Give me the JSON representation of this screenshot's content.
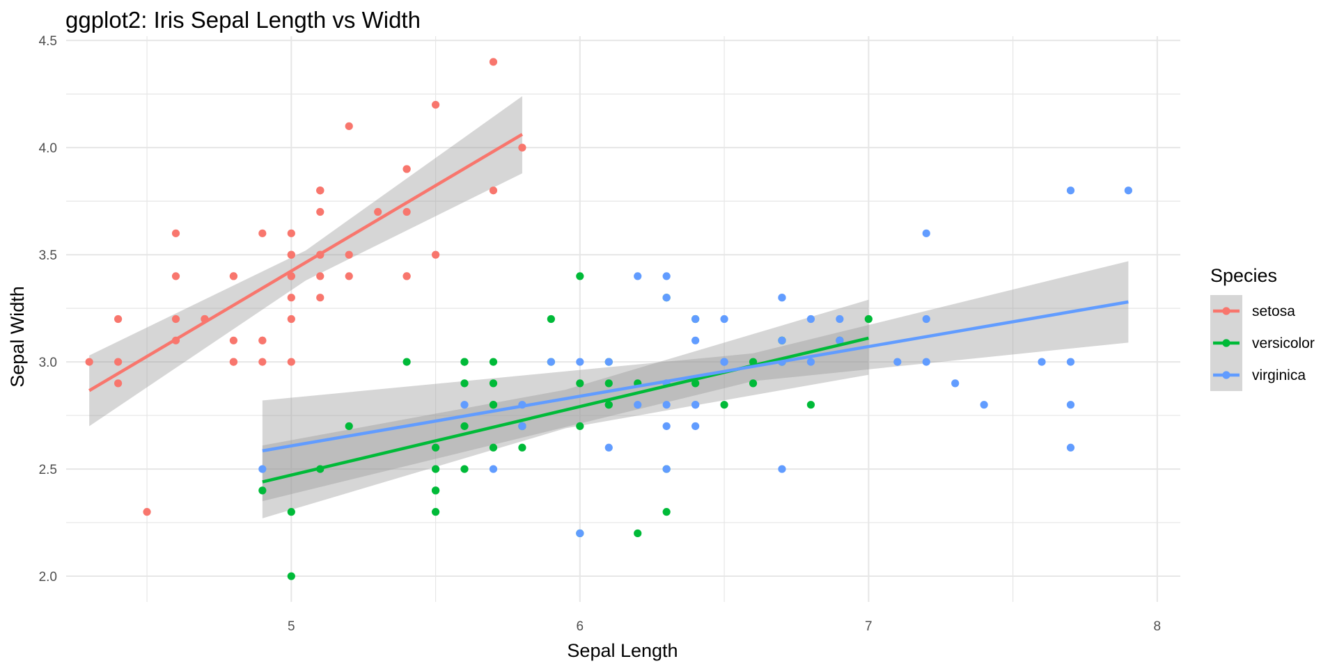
{
  "chart_data": {
    "type": "scatter",
    "title": "ggplot2: Iris Sepal Length vs Width",
    "xlabel": "Sepal Length",
    "ylabel": "Sepal Width",
    "xlim": [
      4.22,
      8.08
    ],
    "ylim": [
      1.88,
      4.52
    ],
    "x_ticks": [
      5,
      6,
      7,
      8
    ],
    "x_tick_labels": [
      "5",
      "6",
      "7",
      "8"
    ],
    "x_minor_ticks": [
      4.5,
      5.5,
      6.5,
      7.5
    ],
    "y_ticks": [
      2.0,
      2.5,
      3.0,
      3.5,
      4.0,
      4.5
    ],
    "y_tick_labels": [
      "2.0",
      "2.5",
      "3.0",
      "3.5",
      "4.0",
      "4.5"
    ],
    "y_minor_ticks": [
      2.25,
      2.75,
      3.25,
      3.75,
      4.25
    ],
    "grid": true,
    "legend": {
      "title": "Species",
      "position": "right"
    },
    "series": [
      {
        "name": "setosa",
        "color": "#F8766D",
        "points": [
          [
            5.1,
            3.5
          ],
          [
            4.9,
            3.0
          ],
          [
            4.7,
            3.2
          ],
          [
            4.6,
            3.1
          ],
          [
            5.0,
            3.6
          ],
          [
            5.4,
            3.9
          ],
          [
            4.6,
            3.4
          ],
          [
            5.0,
            3.4
          ],
          [
            4.4,
            2.9
          ],
          [
            4.9,
            3.1
          ],
          [
            5.4,
            3.7
          ],
          [
            4.8,
            3.4
          ],
          [
            4.8,
            3.0
          ],
          [
            4.3,
            3.0
          ],
          [
            5.8,
            4.0
          ],
          [
            5.7,
            4.4
          ],
          [
            5.4,
            3.9
          ],
          [
            5.1,
            3.5
          ],
          [
            5.7,
            3.8
          ],
          [
            5.1,
            3.8
          ],
          [
            5.4,
            3.4
          ],
          [
            5.1,
            3.7
          ],
          [
            4.6,
            3.6
          ],
          [
            5.1,
            3.3
          ],
          [
            4.8,
            3.4
          ],
          [
            5.0,
            3.0
          ],
          [
            5.0,
            3.4
          ],
          [
            5.2,
            3.5
          ],
          [
            5.2,
            3.4
          ],
          [
            4.7,
            3.2
          ],
          [
            4.8,
            3.1
          ],
          [
            5.4,
            3.4
          ],
          [
            5.2,
            4.1
          ],
          [
            5.5,
            4.2
          ],
          [
            4.9,
            3.1
          ],
          [
            5.0,
            3.2
          ],
          [
            5.5,
            3.5
          ],
          [
            4.9,
            3.6
          ],
          [
            4.4,
            3.0
          ],
          [
            5.1,
            3.4
          ],
          [
            5.0,
            3.5
          ],
          [
            4.5,
            2.3
          ],
          [
            4.4,
            3.2
          ],
          [
            5.0,
            3.5
          ],
          [
            5.1,
            3.8
          ],
          [
            4.8,
            3.0
          ],
          [
            5.1,
            3.8
          ],
          [
            4.6,
            3.2
          ],
          [
            5.3,
            3.7
          ],
          [
            5.0,
            3.3
          ]
        ],
        "fit": {
          "x": [
            4.3,
            5.8
          ],
          "y": [
            2.866,
            4.062
          ]
        },
        "ribbon": {
          "x": [
            4.3,
            5.05,
            5.8
          ],
          "lower": [
            2.7,
            3.38,
            3.88
          ],
          "upper": [
            3.03,
            3.52,
            4.24
          ]
        }
      },
      {
        "name": "versicolor",
        "color": "#00BA38",
        "points": [
          [
            7.0,
            3.2
          ],
          [
            6.4,
            3.2
          ],
          [
            6.9,
            3.1
          ],
          [
            5.5,
            2.3
          ],
          [
            6.5,
            2.8
          ],
          [
            5.7,
            2.8
          ],
          [
            6.3,
            3.3
          ],
          [
            4.9,
            2.4
          ],
          [
            6.6,
            2.9
          ],
          [
            5.2,
            2.7
          ],
          [
            5.0,
            2.0
          ],
          [
            5.9,
            3.0
          ],
          [
            6.0,
            2.2
          ],
          [
            6.1,
            2.9
          ],
          [
            5.6,
            2.9
          ],
          [
            6.7,
            3.1
          ],
          [
            5.6,
            3.0
          ],
          [
            5.8,
            2.7
          ],
          [
            6.2,
            2.2
          ],
          [
            5.6,
            2.5
          ],
          [
            5.9,
            3.2
          ],
          [
            6.1,
            2.8
          ],
          [
            6.3,
            2.5
          ],
          [
            6.1,
            2.8
          ],
          [
            6.4,
            2.9
          ],
          [
            6.6,
            3.0
          ],
          [
            6.8,
            2.8
          ],
          [
            6.7,
            3.0
          ],
          [
            6.0,
            2.9
          ],
          [
            5.7,
            2.6
          ],
          [
            5.5,
            2.4
          ],
          [
            5.5,
            2.4
          ],
          [
            5.8,
            2.7
          ],
          [
            6.0,
            2.7
          ],
          [
            5.4,
            3.0
          ],
          [
            6.0,
            3.4
          ],
          [
            6.7,
            3.1
          ],
          [
            6.3,
            2.3
          ],
          [
            5.6,
            3.0
          ],
          [
            5.5,
            2.5
          ],
          [
            5.5,
            2.6
          ],
          [
            6.1,
            3.0
          ],
          [
            5.8,
            2.6
          ],
          [
            5.0,
            2.3
          ],
          [
            5.6,
            2.7
          ],
          [
            5.7,
            3.0
          ],
          [
            5.7,
            2.9
          ],
          [
            6.2,
            2.9
          ],
          [
            5.1,
            2.5
          ],
          [
            5.7,
            2.8
          ]
        ],
        "fit": {
          "x": [
            4.9,
            7.0
          ],
          "y": [
            2.44,
            3.111
          ]
        },
        "ribbon": {
          "x": [
            4.9,
            5.95,
            7.0
          ],
          "lower": [
            2.27,
            2.69,
            2.94
          ],
          "upper": [
            2.61,
            2.87,
            3.29
          ]
        }
      },
      {
        "name": "virginica",
        "color": "#619CFF",
        "points": [
          [
            6.3,
            3.3
          ],
          [
            5.8,
            2.7
          ],
          [
            7.1,
            3.0
          ],
          [
            6.3,
            2.9
          ],
          [
            6.5,
            3.0
          ],
          [
            7.6,
            3.0
          ],
          [
            4.9,
            2.5
          ],
          [
            7.3,
            2.9
          ],
          [
            6.7,
            2.5
          ],
          [
            7.2,
            3.6
          ],
          [
            6.5,
            3.2
          ],
          [
            6.4,
            2.7
          ],
          [
            6.8,
            3.0
          ],
          [
            5.7,
            2.5
          ],
          [
            5.8,
            2.8
          ],
          [
            6.4,
            3.2
          ],
          [
            6.5,
            3.0
          ],
          [
            7.7,
            3.8
          ],
          [
            7.7,
            2.6
          ],
          [
            6.0,
            2.2
          ],
          [
            6.9,
            3.2
          ],
          [
            5.6,
            2.8
          ],
          [
            7.7,
            2.8
          ],
          [
            6.3,
            2.7
          ],
          [
            6.7,
            3.3
          ],
          [
            7.2,
            3.2
          ],
          [
            6.2,
            2.8
          ],
          [
            6.1,
            3.0
          ],
          [
            6.4,
            2.8
          ],
          [
            7.2,
            3.0
          ],
          [
            7.4,
            2.8
          ],
          [
            7.9,
            3.8
          ],
          [
            6.4,
            2.8
          ],
          [
            6.3,
            2.8
          ],
          [
            6.1,
            2.6
          ],
          [
            7.7,
            3.0
          ],
          [
            6.3,
            3.4
          ],
          [
            6.4,
            3.1
          ],
          [
            6.0,
            3.0
          ],
          [
            6.9,
            3.1
          ],
          [
            6.7,
            3.1
          ],
          [
            6.9,
            3.1
          ],
          [
            5.8,
            2.7
          ],
          [
            6.8,
            3.2
          ],
          [
            6.7,
            3.3
          ],
          [
            6.7,
            3.0
          ],
          [
            6.3,
            2.5
          ],
          [
            6.5,
            3.0
          ],
          [
            6.2,
            3.4
          ],
          [
            5.9,
            3.0
          ]
        ],
        "fit": {
          "x": [
            4.9,
            7.9
          ],
          "y": [
            2.585,
            3.28
          ]
        },
        "ribbon": {
          "x": [
            4.9,
            6.6,
            7.9
          ],
          "lower": [
            2.35,
            2.91,
            3.09
          ],
          "upper": [
            2.82,
            3.04,
            3.47
          ]
        }
      }
    ]
  }
}
